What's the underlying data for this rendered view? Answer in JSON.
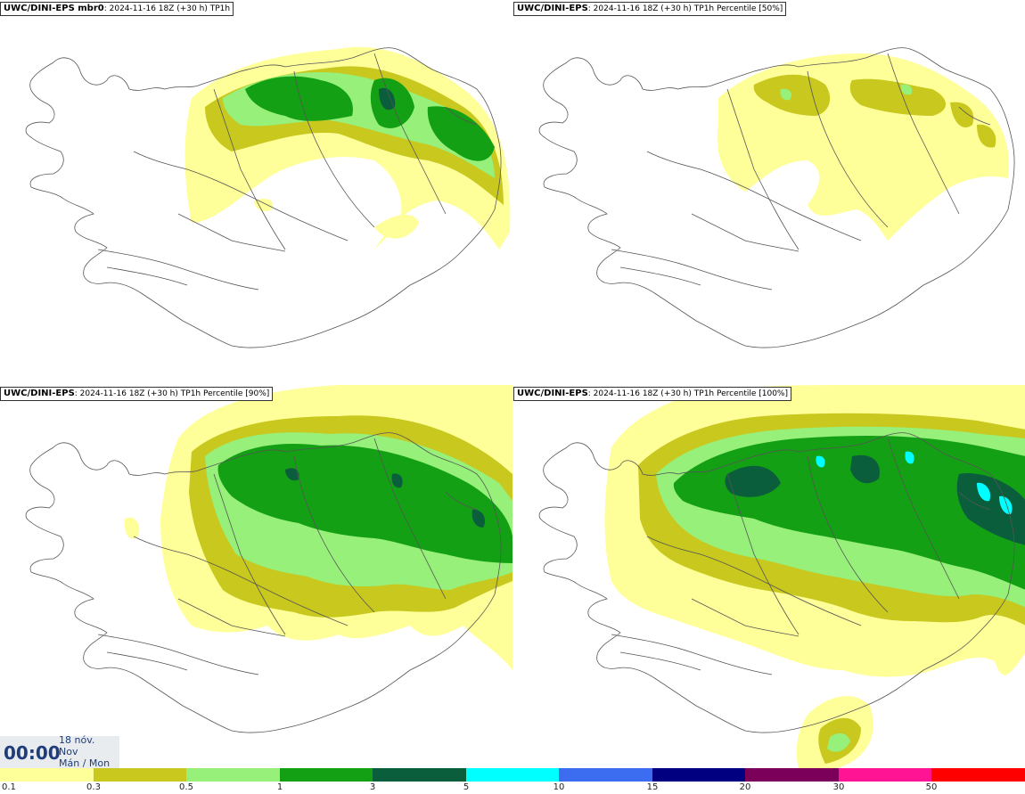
{
  "panels": [
    {
      "model": "UWC/DINI-EPS mbr0",
      "run": ": 2024-11-16 18Z (+30 h)",
      "field": "TP1h"
    },
    {
      "model": "UWC/DINI-EPS",
      "run": ": 2024-11-16 18Z (+30 h)",
      "field": "TP1h Percentile [50%]"
    },
    {
      "model": "UWC/DINI-EPS",
      "run": ": 2024-11-16 18Z (+30 h)",
      "field": "TP1h Percentile [90%]"
    },
    {
      "model": "UWC/DINI-EPS",
      "run": ": 2024-11-16 18Z (+30 h)",
      "field": "TP1h Percentile [100%]"
    }
  ],
  "clock": {
    "time": "00:00",
    "day": "18 nóv.",
    "month": "Nov",
    "weekday": "Mán / Mon"
  },
  "legend": {
    "labels": [
      "0.1",
      "0.3",
      "0.5",
      "1",
      "3",
      "5",
      "10",
      "15",
      "20",
      "30",
      "50"
    ],
    "colors": [
      "#ffff99",
      "#c8c81e",
      "#96f07a",
      "#14a014",
      "#0b5e3c",
      "#00ffff",
      "#3c6cf0",
      "#000080",
      "#7a005a",
      "#ff1493",
      "#ff0000"
    ]
  }
}
